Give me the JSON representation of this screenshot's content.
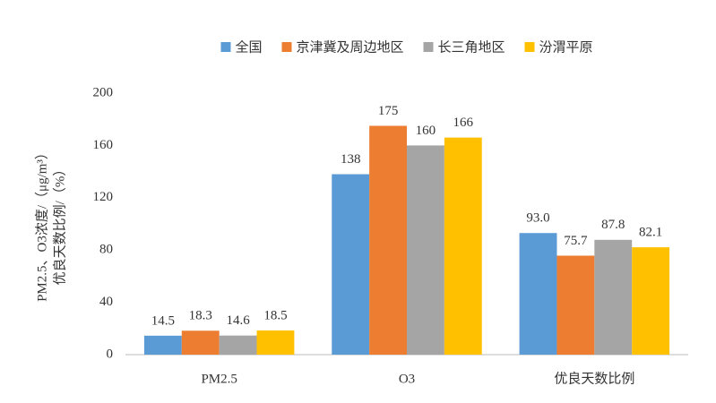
{
  "chart_data": {
    "type": "bar",
    "categories": [
      "PM2.5",
      "O3",
      "优良天数比例"
    ],
    "series": [
      {
        "name": "全国",
        "color": "#5b9bd5",
        "values": [
          14.5,
          138,
          93.0
        ],
        "value_labels": [
          "14.5",
          "138",
          "93.0"
        ]
      },
      {
        "name": "京津冀及周边地区",
        "color": "#ed7d31",
        "values": [
          18.3,
          175,
          75.7
        ],
        "value_labels": [
          "18.3",
          "175",
          "75.7"
        ]
      },
      {
        "name": "长三角地区",
        "color": "#a5a5a5",
        "values": [
          14.6,
          160,
          87.8
        ],
        "value_labels": [
          "14.6",
          "160",
          "87.8"
        ]
      },
      {
        "name": "汾渭平原",
        "color": "#ffc000",
        "values": [
          18.5,
          166,
          82.1
        ],
        "value_labels": [
          "18.5",
          "166",
          "82.1"
        ]
      }
    ],
    "y_label": [
      "PM2.5、O3浓度/（μg/m³）",
      "优良天数比例/（%）"
    ],
    "ylim": [
      0,
      200
    ],
    "yticks": [
      0,
      40,
      80,
      120,
      160,
      200
    ],
    "grid": false,
    "legend": "top"
  }
}
